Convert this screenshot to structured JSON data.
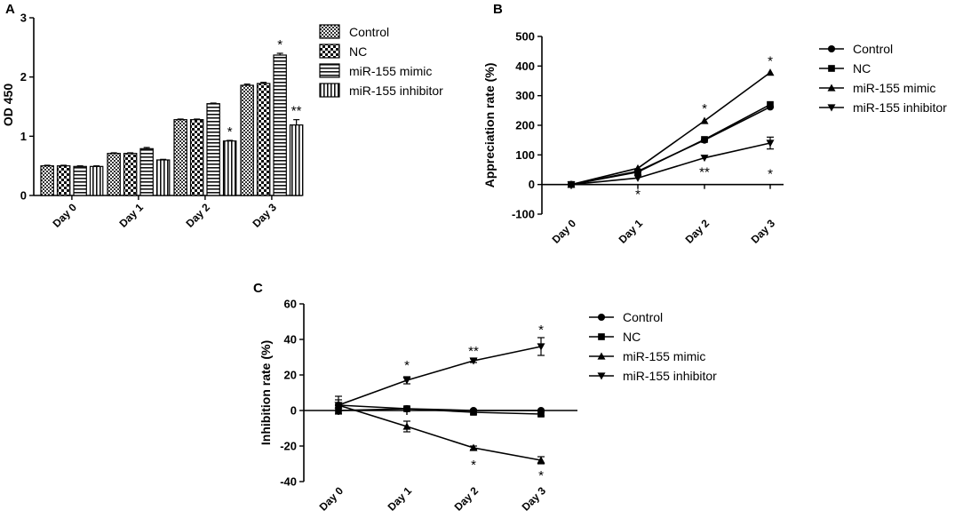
{
  "chart_data": [
    {
      "panel": "A",
      "type": "bar",
      "categories": [
        "Day 0",
        "Day 1",
        "Day 2",
        "Day 3"
      ],
      "ylabel": "OD 450",
      "ylim": [
        0,
        3
      ],
      "yticks": [
        0,
        1,
        2,
        3
      ],
      "legend_position": "top-right",
      "series": [
        {
          "name": "Control",
          "pattern": "checker-fine",
          "values": [
            0.5,
            0.71,
            1.28,
            1.86
          ],
          "errors": [
            0.01,
            0.01,
            0.01,
            0.02
          ]
        },
        {
          "name": "NC",
          "pattern": "checker-coarse",
          "values": [
            0.5,
            0.71,
            1.28,
            1.89
          ],
          "errors": [
            0.01,
            0.01,
            0.01,
            0.02
          ]
        },
        {
          "name": "miR-155 mimic",
          "pattern": "horizontal",
          "values": [
            0.49,
            0.79,
            1.55,
            2.37
          ],
          "errors": [
            0.01,
            0.02,
            0.01,
            0.03
          ]
        },
        {
          "name": "miR-155 inhibitor",
          "pattern": "vertical",
          "values": [
            0.49,
            0.6,
            0.92,
            1.19
          ],
          "errors": [
            0.01,
            0.01,
            0.01,
            0.09
          ]
        }
      ],
      "annotations": [
        {
          "category": "Day 2",
          "series": "miR-155 inhibitor",
          "text": "*"
        },
        {
          "category": "Day 3",
          "series": "miR-155 mimic",
          "text": "*"
        },
        {
          "category": "Day 3",
          "series": "miR-155 inhibitor",
          "text": "**"
        }
      ]
    },
    {
      "panel": "B",
      "type": "line",
      "categories": [
        "Day 0",
        "Day 1",
        "Day 2",
        "Day 3"
      ],
      "ylabel": "Appreciation rate (%)",
      "ylim": [
        -100,
        500
      ],
      "yticks": [
        -100,
        0,
        100,
        200,
        300,
        400,
        500
      ],
      "legend_position": "right",
      "series": [
        {
          "name": "Control",
          "marker": "circle",
          "values": [
            0,
            45,
            150,
            262
          ],
          "errors": [
            0,
            0,
            0,
            0
          ]
        },
        {
          "name": "NC",
          "marker": "square",
          "values": [
            0,
            42,
            152,
            270
          ],
          "errors": [
            0,
            0,
            0,
            0
          ]
        },
        {
          "name": "miR-155 mimic",
          "marker": "triangle-up",
          "values": [
            0,
            55,
            215,
            378
          ],
          "errors": [
            0,
            0,
            0,
            0
          ]
        },
        {
          "name": "miR-155 inhibitor",
          "marker": "triangle-down",
          "values": [
            0,
            22,
            90,
            140
          ],
          "errors": [
            0,
            0,
            0,
            20
          ]
        }
      ],
      "annotations": [
        {
          "category": "Day 1",
          "value": -30,
          "text": "*"
        },
        {
          "category": "Day 2",
          "value": 260,
          "text": "*"
        },
        {
          "category": "Day 2",
          "value": 45,
          "text": "**"
        },
        {
          "category": "Day 3",
          "value": 420,
          "text": "*"
        },
        {
          "category": "Day 3",
          "value": 40,
          "text": "*"
        }
      ]
    },
    {
      "panel": "C",
      "type": "line",
      "categories": [
        "Day 0",
        "Day 1",
        "Day 2",
        "Day 3"
      ],
      "ylabel": "Inhibition rate (%)",
      "ylim": [
        -40,
        60
      ],
      "yticks": [
        -40,
        -20,
        0,
        20,
        40,
        60
      ],
      "legend_position": "right",
      "series": [
        {
          "name": "Control",
          "marker": "circle",
          "values": [
            3,
            1,
            0,
            0
          ],
          "errors": [
            3,
            1,
            0,
            0
          ]
        },
        {
          "name": "NC",
          "marker": "square",
          "values": [
            0,
            1,
            -1,
            -2
          ],
          "errors": [
            0,
            1,
            1,
            1
          ]
        },
        {
          "name": "miR-155 mimic",
          "marker": "triangle-up",
          "values": [
            3,
            -9,
            -21,
            -28
          ],
          "errors": [
            0,
            3,
            1,
            2
          ]
        },
        {
          "name": "miR-155 inhibitor",
          "marker": "triangle-down",
          "values": [
            3,
            17,
            28,
            36
          ],
          "errors": [
            5,
            2,
            1,
            5
          ]
        }
      ],
      "annotations": [
        {
          "category": "Day 1",
          "value": 26,
          "text": "*"
        },
        {
          "category": "Day 2",
          "value": 34,
          "text": "**"
        },
        {
          "category": "Day 2",
          "value": -30,
          "text": "*"
        },
        {
          "category": "Day 3",
          "value": 46,
          "text": "*"
        },
        {
          "category": "Day 3",
          "value": -36,
          "text": "*"
        }
      ]
    }
  ]
}
